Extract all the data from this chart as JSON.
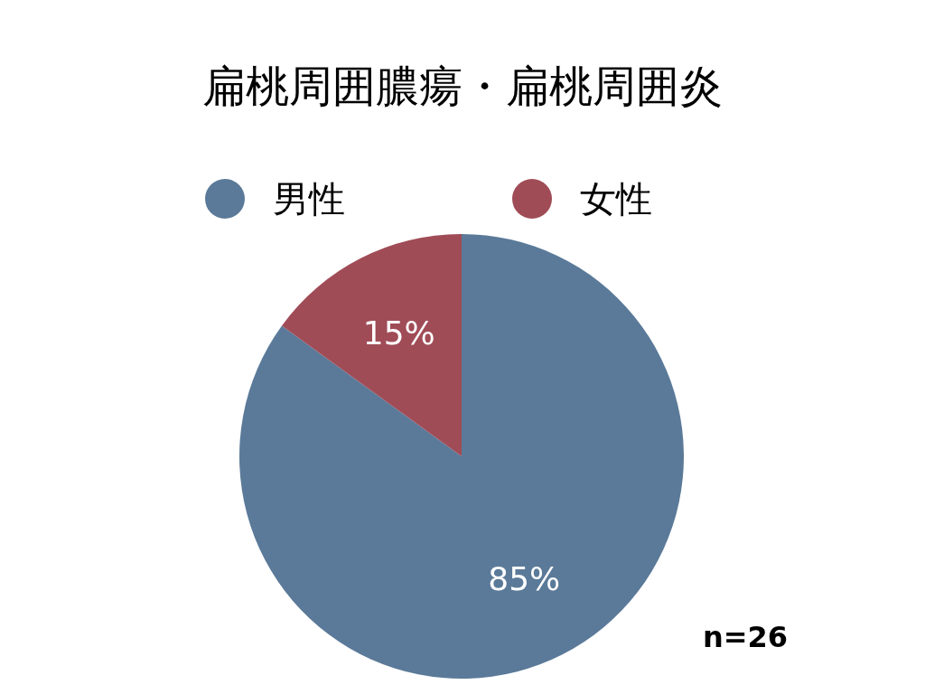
{
  "chart_data": {
    "type": "pie",
    "title": "扁桃周囲膿瘍・扁桃周囲炎",
    "categories": [
      "男性",
      "女性"
    ],
    "values": [
      85,
      15
    ],
    "colors": [
      "#5b7a99",
      "#a04c57"
    ],
    "value_labels": [
      "85%",
      "15%"
    ],
    "legend": "top",
    "annotations": [
      "n=26"
    ]
  }
}
